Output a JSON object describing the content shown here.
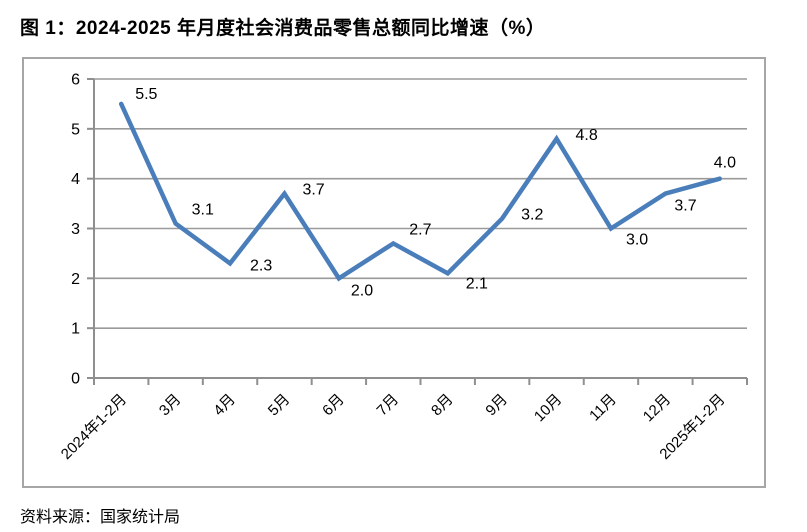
{
  "title": "图 1：2024-2025 年月度社会消费品零售总额同比增速（%）",
  "source": "资料来源：国家统计局",
  "colors": {
    "line": "#4a7ebb",
    "grid": "#9a9a9a",
    "axis": "#8f8f8f",
    "frame": "#a6a6a6",
    "label_text": "#000000"
  },
  "chart_data": {
    "type": "line",
    "categories": [
      "2024年1-2月",
      "3月",
      "4月",
      "5月",
      "6月",
      "7月",
      "8月",
      "9月",
      "10月",
      "11月",
      "12月",
      "2025年1-2月"
    ],
    "values": [
      5.5,
      3.1,
      2.3,
      3.7,
      2.0,
      2.7,
      2.1,
      3.2,
      4.8,
      3.0,
      3.7,
      4.0
    ],
    "data_labels": [
      "5.5",
      "3.1",
      "2.3",
      "3.7",
      "2.0",
      "2.7",
      "2.1",
      "3.2",
      "4.8",
      "3.0",
      "3.7",
      "4.0"
    ],
    "title": "",
    "xlabel": "",
    "ylabel": "",
    "ylim": [
      0,
      6
    ],
    "yticks": [
      0,
      1,
      2,
      3,
      4,
      5,
      6
    ],
    "grid": true,
    "legend_position": "none",
    "x_tick_label_rotation_deg": -45
  }
}
